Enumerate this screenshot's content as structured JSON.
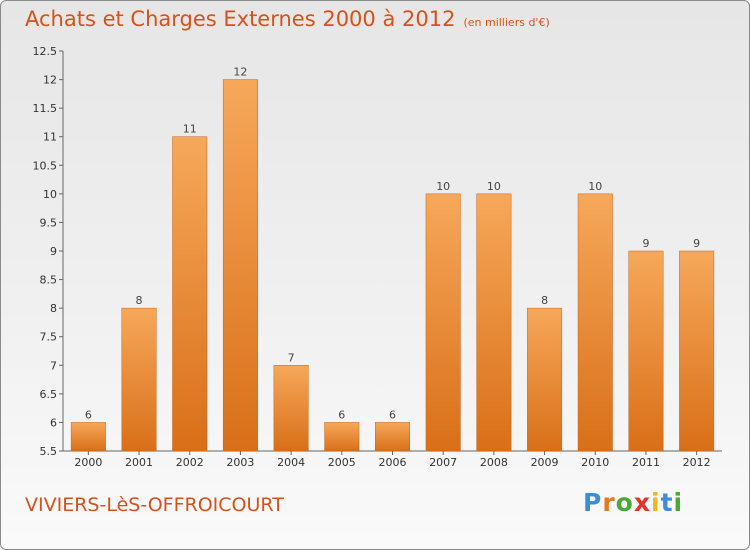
{
  "header": {
    "title": "Achats et Charges Externes 2000 à 2012",
    "subtitle": "(en milliers d'€)"
  },
  "footer": {
    "commune": "VIVIERS-LèS-OFFROICOURT",
    "logo_letters": [
      "P",
      "r",
      "o",
      "x",
      "i",
      "t",
      "i"
    ]
  },
  "colors": {
    "bar_top": "#f6a85a",
    "bar_bottom": "#d96f18",
    "title": "#d8511a",
    "logo": [
      "#3b8fd6",
      "#e8791e",
      "#4aa834",
      "#e2342a",
      "#f2b51c",
      "#3b8fd6",
      "#4aa834"
    ]
  },
  "chart_data": {
    "type": "bar",
    "categories": [
      "2000",
      "2001",
      "2002",
      "2003",
      "2004",
      "2005",
      "2006",
      "2007",
      "2008",
      "2009",
      "2010",
      "2011",
      "2012"
    ],
    "values": [
      6,
      8,
      11,
      12,
      7,
      6,
      6,
      10,
      10,
      8,
      10,
      9,
      9
    ],
    "ylim": [
      5.5,
      12.5
    ],
    "yticks": [
      "5.5",
      "6",
      "6.5",
      "7",
      "7.5",
      "8",
      "8.5",
      "9",
      "9.5",
      "10",
      "10.5",
      "11",
      "11.5",
      "12",
      "12.5"
    ],
    "grid": false
  }
}
